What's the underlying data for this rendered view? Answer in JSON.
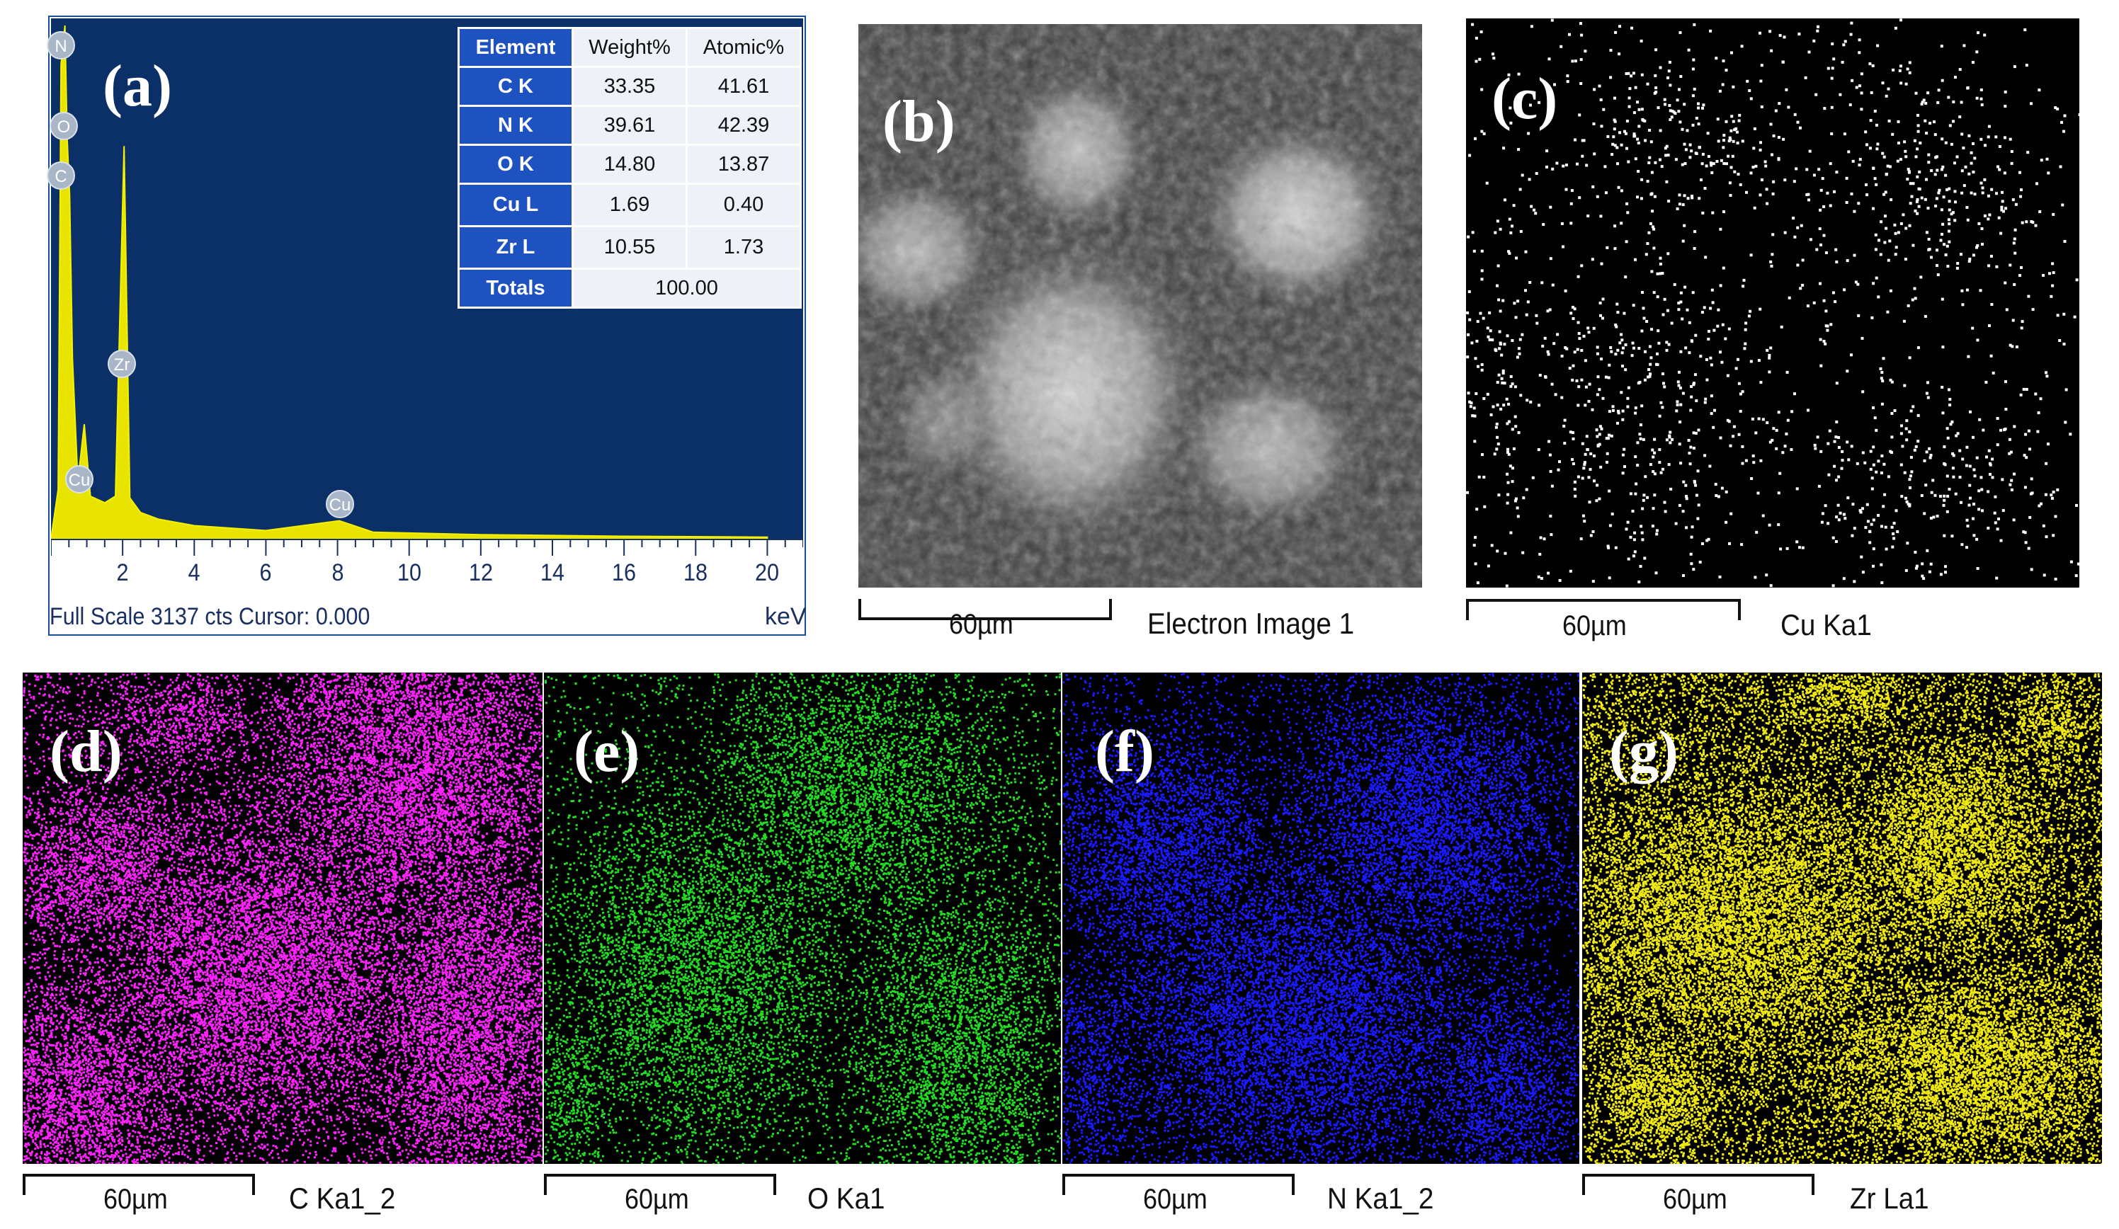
{
  "panels": {
    "a": "(a)",
    "b": "(b)",
    "c": "(c)",
    "d": "(d)",
    "e": "(e)",
    "f": "(f)",
    "g": "(g)"
  },
  "eds_table": {
    "headers": [
      "Element",
      "Weight%",
      "Atomic%"
    ],
    "rows": [
      {
        "element": "C K",
        "weight": "33.35",
        "atomic": "41.61"
      },
      {
        "element": "N K",
        "weight": "39.61",
        "atomic": "42.39"
      },
      {
        "element": "O K",
        "weight": "14.80",
        "atomic": "13.87"
      },
      {
        "element": "Cu L",
        "weight": "1.69",
        "atomic": "0.40"
      },
      {
        "element": "Zr L",
        "weight": "10.55",
        "atomic": "1.73"
      }
    ],
    "totals_label": "Totals",
    "totals_value": "100.00"
  },
  "spectrum": {
    "footer_left": "Full Scale 3137 cts Cursor: 0.000",
    "unit": "keV",
    "peak_labels": [
      "N",
      "O",
      "C",
      "Zr",
      "Cu",
      "Cu"
    ]
  },
  "images": {
    "b": {
      "scale": "60µm",
      "caption": "Electron Image 1"
    },
    "c": {
      "scale": "60µm",
      "caption": "Cu Ka1"
    },
    "d": {
      "scale": "60µm",
      "caption": "C Ka1_2"
    },
    "e": {
      "scale": "60µm",
      "caption": "O Ka1"
    },
    "f": {
      "scale": "60µm",
      "caption": "N Ka1_2"
    },
    "g": {
      "scale": "60µm",
      "caption": "Zr La1"
    }
  },
  "map_colors": {
    "c": "#ffffff",
    "d": "#ff22ff",
    "e": "#22dd22",
    "f": "#1a1aff",
    "g": "#f0ea10"
  },
  "chart_data": {
    "type": "line",
    "xlabel": "keV",
    "xlim": [
      0,
      21
    ],
    "x_ticks": [
      2,
      4,
      6,
      8,
      10,
      12,
      14,
      16,
      18,
      20
    ],
    "series": [
      {
        "x": [
          0.0,
          0.2,
          0.28,
          0.39,
          0.45,
          0.52,
          0.6,
          0.75,
          0.93,
          1.1,
          1.5,
          1.8,
          2.04,
          2.2,
          2.5,
          3,
          4,
          6,
          8.05,
          9,
          12,
          16,
          20
        ],
        "y": [
          0,
          300,
          2900,
          3137,
          2450,
          2100,
          1100,
          350,
          700,
          260,
          220,
          260,
          2400,
          250,
          160,
          120,
          80,
          50,
          110,
          40,
          25,
          15,
          10
        ]
      }
    ],
    "peaks": [
      {
        "label": "C",
        "kev": 0.28
      },
      {
        "label": "N",
        "kev": 0.39
      },
      {
        "label": "O",
        "kev": 0.52
      },
      {
        "label": "Cu",
        "kev": 0.93
      },
      {
        "label": "Zr",
        "kev": 2.04
      },
      {
        "label": "Cu",
        "kev": 8.05
      }
    ]
  }
}
